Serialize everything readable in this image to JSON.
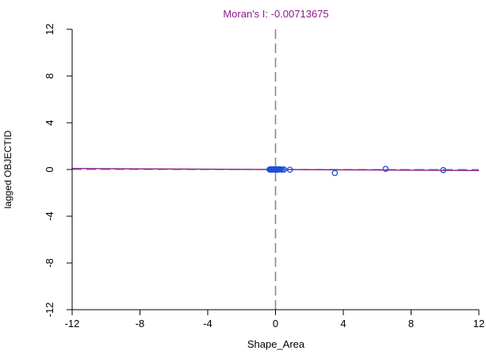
{
  "chart_data": {
    "type": "scatter",
    "title": "Moran's I: -0.00713675",
    "xlabel": "Shape_Area",
    "ylabel": "lagged OBJECTID",
    "xlim": [
      -12,
      12
    ],
    "ylim": [
      -12,
      12
    ],
    "x_ticks": [
      -12,
      -8,
      -4,
      0,
      4,
      8,
      12
    ],
    "y_ticks": [
      -12,
      -8,
      -4,
      0,
      4,
      8,
      12
    ],
    "x_tick_labels": [
      "-12",
      "-8",
      "-4",
      "0",
      "4",
      "8",
      "12"
    ],
    "y_tick_labels": [
      "-12",
      "-8",
      "-4",
      "0",
      "4",
      "8",
      "12"
    ],
    "grid": false,
    "points": [
      {
        "x": -0.35,
        "y": 0.0
      },
      {
        "x": -0.3,
        "y": 0.02
      },
      {
        "x": -0.25,
        "y": -0.02
      },
      {
        "x": -0.2,
        "y": 0.01
      },
      {
        "x": -0.15,
        "y": 0.0
      },
      {
        "x": -0.1,
        "y": 0.02
      },
      {
        "x": -0.05,
        "y": -0.01
      },
      {
        "x": 0.0,
        "y": 0.0
      },
      {
        "x": 0.05,
        "y": 0.01
      },
      {
        "x": 0.1,
        "y": -0.02
      },
      {
        "x": 0.15,
        "y": 0.0
      },
      {
        "x": 0.2,
        "y": 0.02
      },
      {
        "x": 0.25,
        "y": 0.0
      },
      {
        "x": 0.3,
        "y": 0.01
      },
      {
        "x": 0.4,
        "y": -0.01
      },
      {
        "x": 0.5,
        "y": 0.0
      },
      {
        "x": 0.85,
        "y": -0.02
      },
      {
        "x": 3.5,
        "y": -0.3
      },
      {
        "x": 6.5,
        "y": 0.05
      },
      {
        "x": 9.9,
        "y": -0.05
      }
    ],
    "regression": {
      "slope": -0.00713675,
      "intercept": 0.0
    },
    "reference_lines": {
      "vertical_x": 0,
      "horizontal_y": 0
    },
    "colors": {
      "title": "#8B1A8B",
      "points": "#1E4FD8",
      "regression": "#8B1A8B",
      "reference": "#888888",
      "axis": "#000000"
    }
  }
}
